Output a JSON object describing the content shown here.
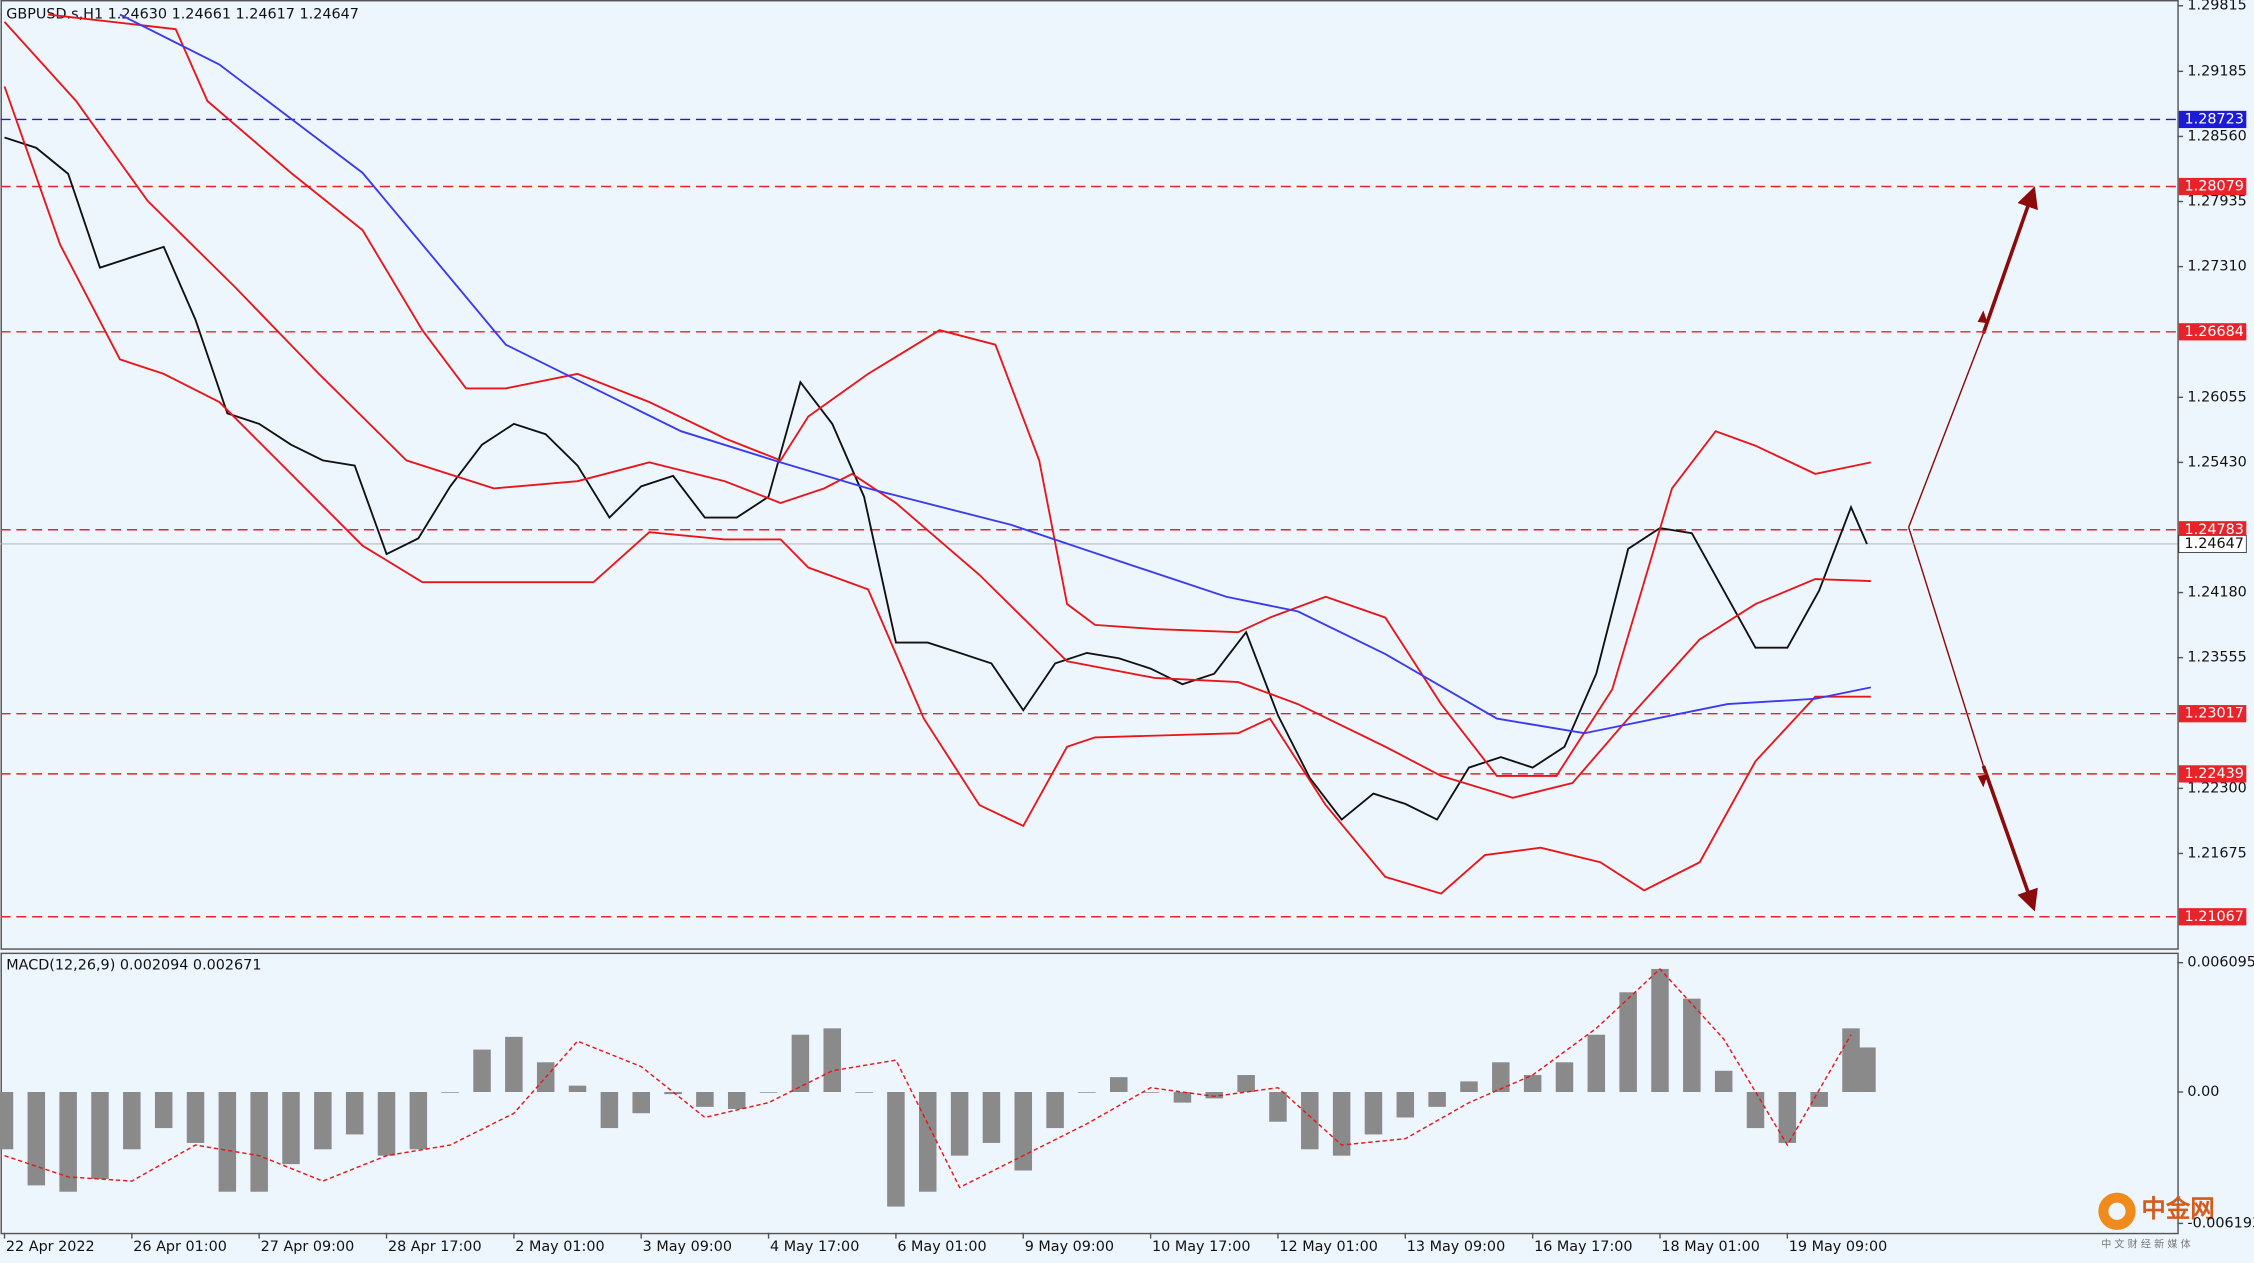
{
  "chart_data": [
    {
      "type": "line",
      "title": "GBPUSD.s,H1  1.24630 1.24661 1.24617 1.24647",
      "xlim": [
        -1,
        546
      ],
      "xticks": [
        {
          "value": 0,
          "label": "22 Apr 2022"
        },
        {
          "value": 32,
          "label": "26 Apr 01:00"
        },
        {
          "value": 64,
          "label": "27 Apr 09:00"
        },
        {
          "value": 96,
          "label": "28 Apr 17:00"
        },
        {
          "value": 128,
          "label": "2 May 01:00"
        },
        {
          "value": 160,
          "label": "3 May 09:00"
        },
        {
          "value": 192,
          "label": "4 May 17:00"
        },
        {
          "value": 224,
          "label": "6 May 01:00"
        },
        {
          "value": 256,
          "label": "9 May 09:00"
        },
        {
          "value": 288,
          "label": "10 May 17:00"
        },
        {
          "value": 320,
          "label": "12 May 01:00"
        },
        {
          "value": 352,
          "label": "13 May 09:00"
        },
        {
          "value": 384,
          "label": "16 May 17:00"
        },
        {
          "value": 416,
          "label": "18 May 01:00"
        },
        {
          "value": 448,
          "label": "19 May 09:00"
        }
      ],
      "ylim": [
        1.20764,
        1.2987
      ],
      "yticks": [
        1.29815,
        1.29185,
        {
          "value": 1.2856,
          "label": "1.28560"
        },
        1.27935,
        {
          "value": 1.2731,
          "label": "1.27310"
        },
        1.26055,
        {
          "value": 1.2543,
          "label": "1.25430"
        },
        {
          "value": 1.2418,
          "label": "1.24180"
        },
        1.23555,
        {
          "value": 1.223,
          "label": "1.22300"
        },
        1.21675
      ],
      "levels": [
        {
          "value": 1.28723,
          "color": "#1c1cd6"
        },
        {
          "value": 1.28079,
          "color": "#e8232a"
        },
        {
          "value": 1.26684,
          "color": "#e8232a"
        },
        {
          "value": 1.24783,
          "color": "#e8232a"
        },
        {
          "value": 1.23017,
          "color": "#e8232a"
        },
        {
          "value": 1.22439,
          "color": "#e8232a"
        },
        {
          "value": 1.21067,
          "color": "#e8232a"
        }
      ],
      "last_price": 1.24647,
      "series": [
        {
          "color": "#111111",
          "x": [
            0,
            8,
            16,
            24,
            32,
            40,
            48,
            56,
            64,
            72,
            80,
            88,
            96,
            104,
            112,
            120,
            128,
            136,
            144,
            152,
            160,
            168,
            176,
            184,
            192,
            200,
            208,
            216,
            224,
            232,
            240,
            248,
            256,
            264,
            272,
            280,
            288,
            296,
            304,
            312,
            320,
            328,
            336,
            344,
            352,
            360,
            368,
            376,
            384,
            392,
            400,
            408,
            416,
            424,
            432,
            440,
            448,
            456,
            464,
            468
          ],
          "values": [
            1.2855,
            1.2845,
            1.282,
            1.273,
            1.274,
            1.275,
            1.268,
            1.259,
            1.258,
            1.256,
            1.2545,
            1.254,
            1.2455,
            1.247,
            1.252,
            1.256,
            1.258,
            1.257,
            1.254,
            1.249,
            1.252,
            1.253,
            1.249,
            1.249,
            1.251,
            1.262,
            1.258,
            1.251,
            1.237,
            1.237,
            1.236,
            1.235,
            1.2305,
            1.235,
            1.236,
            1.2355,
            1.2345,
            1.233,
            1.234,
            1.238,
            1.23,
            1.224,
            1.22,
            1.2225,
            1.2215,
            1.22,
            1.225,
            1.226,
            1.225,
            1.227,
            1.234,
            1.246,
            1.248,
            1.2475,
            1.242,
            1.2365,
            1.2365,
            1.242,
            1.25,
            1.24647
          ]
        },
        {
          "color": "#e8161b",
          "x": [
            11,
            43,
            51,
            72,
            90,
            105,
            116,
            126,
            144,
            162,
            181,
            195,
            202,
            217,
            235,
            249,
            260,
            267,
            274,
            289,
            310,
            318,
            332,
            347,
            361,
            375,
            390,
            404,
            419,
            430,
            440,
            455,
            469
          ],
          "values": [
            1.2973,
            1.2959,
            1.289,
            1.2821,
            1.2766,
            1.267,
            1.2614,
            1.2614,
            1.2628,
            1.2601,
            1.2566,
            1.2545,
            1.2587,
            1.2628,
            1.267,
            1.2656,
            1.2545,
            1.2407,
            1.2387,
            1.2383,
            1.238,
            1.2394,
            1.2414,
            1.2394,
            1.2311,
            1.2242,
            1.2242,
            1.2325,
            1.2518,
            1.2573,
            1.2559,
            1.2532,
            1.2543
          ]
        },
        {
          "color": "#e8161b",
          "x": [
            0,
            18,
            36,
            58,
            79,
            101,
            123,
            144,
            162,
            181,
            195,
            206,
            213,
            224,
            245,
            267,
            289,
            310,
            325,
            347,
            361,
            379,
            394,
            408,
            426,
            440,
            455,
            469
          ],
          "values": [
            1.2966,
            1.289,
            1.2794,
            1.2711,
            1.2628,
            1.2545,
            1.2518,
            1.2525,
            1.2543,
            1.2525,
            1.2504,
            1.2518,
            1.2532,
            1.2504,
            1.2435,
            1.2352,
            1.2336,
            1.2332,
            1.2311,
            1.227,
            1.2242,
            1.2221,
            1.2235,
            1.2297,
            1.2373,
            1.2407,
            1.2431,
            1.2429
          ]
        },
        {
          "color": "#e8161b",
          "x": [
            0,
            14,
            29,
            40,
            54,
            72,
            90,
            105,
            126,
            148,
            162,
            181,
            195,
            202,
            217,
            231,
            245,
            256,
            267,
            274,
            310,
            318,
            332,
            347,
            361,
            372,
            386,
            401,
            412,
            426,
            440,
            455,
            469
          ],
          "values": [
            1.2904,
            1.2752,
            1.2642,
            1.2628,
            1.2601,
            1.2532,
            1.2463,
            1.2428,
            1.2428,
            1.2428,
            1.2476,
            1.2469,
            1.2469,
            1.2442,
            1.2421,
            1.2297,
            1.2214,
            1.2194,
            1.227,
            1.2279,
            1.2283,
            1.2297,
            1.2214,
            1.2145,
            1.2129,
            1.2166,
            1.2173,
            1.2159,
            1.2132,
            1.2159,
            1.2256,
            1.2318,
            1.2318
          ]
        },
        {
          "color": "#3a3af0",
          "x": [
            29,
            54,
            90,
            126,
            144,
            170,
            195,
            217,
            253,
            274,
            307,
            325,
            347,
            375,
            397,
            415,
            433,
            455,
            469
          ],
          "values": [
            1.2973,
            1.2925,
            1.2821,
            1.2656,
            1.2622,
            1.2573,
            1.2543,
            1.2518,
            1.2483,
            1.2456,
            1.2414,
            1.24,
            1.2359,
            1.2297,
            1.2283,
            1.2297,
            1.2311,
            1.2316,
            1.2327
          ]
        }
      ]
    },
    {
      "type": "bar",
      "title": "MACD(12,26,9) 0.002094 0.002671",
      "xlim": [
        -1,
        546
      ],
      "ylim": [
        -0.006637,
        0.006569
      ],
      "yticks": [
        0.006095,
        {
          "value": 0,
          "label": "0.00"
        },
        -0.006193
      ],
      "series": [
        {
          "type": "bar",
          "color": "#8a8a8a",
          "x": [
            0,
            8,
            16,
            24,
            32,
            40,
            48,
            56,
            64,
            72,
            80,
            88,
            96,
            104,
            112,
            120,
            128,
            136,
            144,
            152,
            160,
            168,
            176,
            184,
            192,
            200,
            208,
            216,
            224,
            232,
            240,
            248,
            256,
            264,
            272,
            280,
            288,
            296,
            304,
            312,
            320,
            328,
            336,
            344,
            352,
            360,
            368,
            376,
            384,
            392,
            400,
            408,
            416,
            424,
            432,
            440,
            448,
            456,
            464,
            468
          ],
          "values": [
            -0.0027,
            -0.0044,
            -0.0047,
            -0.0041,
            -0.0027,
            -0.0017,
            -0.0024,
            -0.0047,
            -0.0047,
            -0.0034,
            -0.0027,
            -0.002,
            -0.003,
            -0.0027,
            0,
            0.002,
            0.0026,
            0.0014,
            0.0003,
            -0.0017,
            -0.001,
            -0.0001,
            -0.0007,
            -0.0008,
            0,
            0.0027,
            0.003,
            0,
            -0.0054,
            -0.0047,
            -0.003,
            -0.0024,
            -0.0037,
            -0.0017,
            0,
            0.0007,
            0,
            -0.0005,
            -0.0003,
            0.0008,
            -0.0014,
            -0.0027,
            -0.003,
            -0.002,
            -0.0012,
            -0.0007,
            0.0005,
            0.0014,
            0.0008,
            0.0014,
            0.0027,
            0.0047,
            0.0058,
            0.0044,
            0.001,
            -0.0017,
            -0.0024,
            -0.0007,
            0.003,
            0.0021
          ]
        },
        {
          "type": "line",
          "color": "#e8161b",
          "x": [
            0,
            16,
            32,
            48,
            64,
            80,
            96,
            112,
            128,
            144,
            160,
            176,
            192,
            208,
            224,
            240,
            256,
            272,
            288,
            304,
            320,
            336,
            352,
            368,
            384,
            400,
            416,
            432,
            448,
            464
          ],
          "values": [
            -0.003,
            -0.004,
            -0.0042,
            -0.0025,
            -0.003,
            -0.0042,
            -0.003,
            -0.0025,
            -0.001,
            0.0024,
            0.0012,
            -0.0012,
            -0.0005,
            0.001,
            0.0015,
            -0.0045,
            -0.003,
            -0.0015,
            0.0002,
            -0.0002,
            0.0002,
            -0.0025,
            -0.0022,
            -0.0005,
            0.0008,
            0.003,
            0.0058,
            0.0025,
            -0.0025,
            0.0027
          ]
        }
      ]
    }
  ],
  "watermark": {
    "logo": "中金网",
    "subtitle": "中 文 财 经 新 媒 体"
  }
}
